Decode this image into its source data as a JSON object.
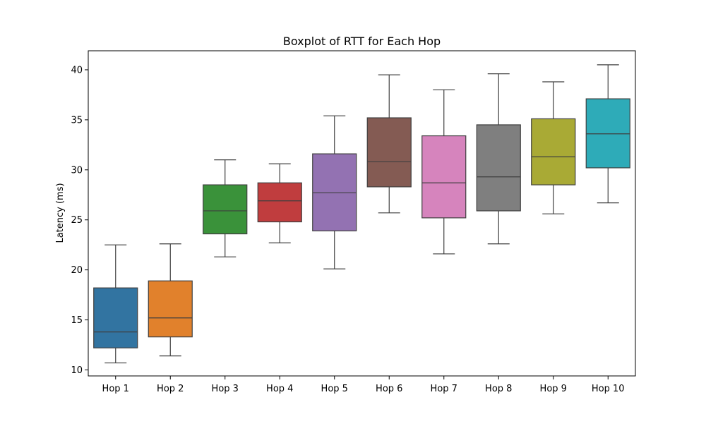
{
  "chart_data": {
    "type": "box",
    "title": "Boxplot of RTT for Each Hop",
    "xlabel": "",
    "ylabel": "Latency (ms)",
    "ylim": [
      9.4,
      41.9
    ],
    "yticks": [
      10,
      15,
      20,
      25,
      30,
      35,
      40
    ],
    "grid": false,
    "categories": [
      "Hop 1",
      "Hop 2",
      "Hop 3",
      "Hop 4",
      "Hop 5",
      "Hop 6",
      "Hop 7",
      "Hop 8",
      "Hop 9",
      "Hop 10"
    ],
    "colors": [
      "#3274a1",
      "#e1812c",
      "#3a923a",
      "#c03d3e",
      "#9372b2",
      "#845b53",
      "#d684bd",
      "#7f7f7f",
      "#a9aa35",
      "#2eabb8"
    ],
    "series": [
      {
        "category": "Hop 1",
        "whisker_low": 10.7,
        "q1": 12.2,
        "median": 13.8,
        "q3": 18.2,
        "whisker_high": 22.5
      },
      {
        "category": "Hop 2",
        "whisker_low": 11.4,
        "q1": 13.3,
        "median": 15.2,
        "q3": 18.9,
        "whisker_high": 22.6
      },
      {
        "category": "Hop 3",
        "whisker_low": 21.3,
        "q1": 23.6,
        "median": 25.9,
        "q3": 28.5,
        "whisker_high": 31.0
      },
      {
        "category": "Hop 4",
        "whisker_low": 22.7,
        "q1": 24.8,
        "median": 26.9,
        "q3": 28.7,
        "whisker_high": 30.6
      },
      {
        "category": "Hop 5",
        "whisker_low": 20.1,
        "q1": 23.9,
        "median": 27.7,
        "q3": 31.6,
        "whisker_high": 35.4
      },
      {
        "category": "Hop 6",
        "whisker_low": 25.7,
        "q1": 28.3,
        "median": 30.8,
        "q3": 35.2,
        "whisker_high": 39.5
      },
      {
        "category": "Hop 7",
        "whisker_low": 21.6,
        "q1": 25.2,
        "median": 28.7,
        "q3": 33.4,
        "whisker_high": 38.0
      },
      {
        "category": "Hop 8",
        "whisker_low": 22.6,
        "q1": 25.9,
        "median": 29.3,
        "q3": 34.5,
        "whisker_high": 39.6
      },
      {
        "category": "Hop 9",
        "whisker_low": 25.6,
        "q1": 28.5,
        "median": 31.3,
        "q3": 35.1,
        "whisker_high": 38.8
      },
      {
        "category": "Hop 10",
        "whisker_low": 26.7,
        "q1": 30.2,
        "median": 33.6,
        "q3": 37.1,
        "whisker_high": 40.5
      }
    ]
  }
}
